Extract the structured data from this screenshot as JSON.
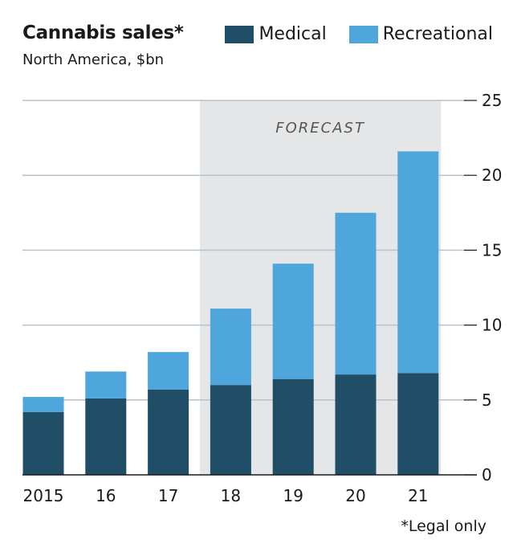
{
  "title": "Cannabis sales*",
  "subtitle": "North America, $bn",
  "footnote": "*Legal only",
  "legend": [
    {
      "label": "Medical",
      "color": "#1f4e66"
    },
    {
      "label": "Recreational",
      "color": "#4ea6dc"
    }
  ],
  "chart_data": {
    "type": "bar",
    "stacked": true,
    "categories": [
      "2015",
      "16",
      "17",
      "18",
      "19",
      "20",
      "21"
    ],
    "series": [
      {
        "name": "Medical",
        "color": "#1f4e66",
        "values": [
          4.2,
          5.1,
          5.7,
          6.0,
          6.4,
          6.7,
          6.8
        ]
      },
      {
        "name": "Recreational",
        "color": "#4ea6dc",
        "values": [
          1.0,
          1.8,
          2.5,
          5.1,
          7.7,
          10.8,
          14.8
        ]
      }
    ],
    "ylim": [
      0,
      25
    ],
    "yticks": [
      0,
      5,
      10,
      15,
      20,
      25
    ],
    "y_axis_side": "right",
    "grid": true,
    "forecast": {
      "label": "FORECAST",
      "from": "18",
      "to": "21",
      "shade": "#e5e6e8"
    }
  }
}
